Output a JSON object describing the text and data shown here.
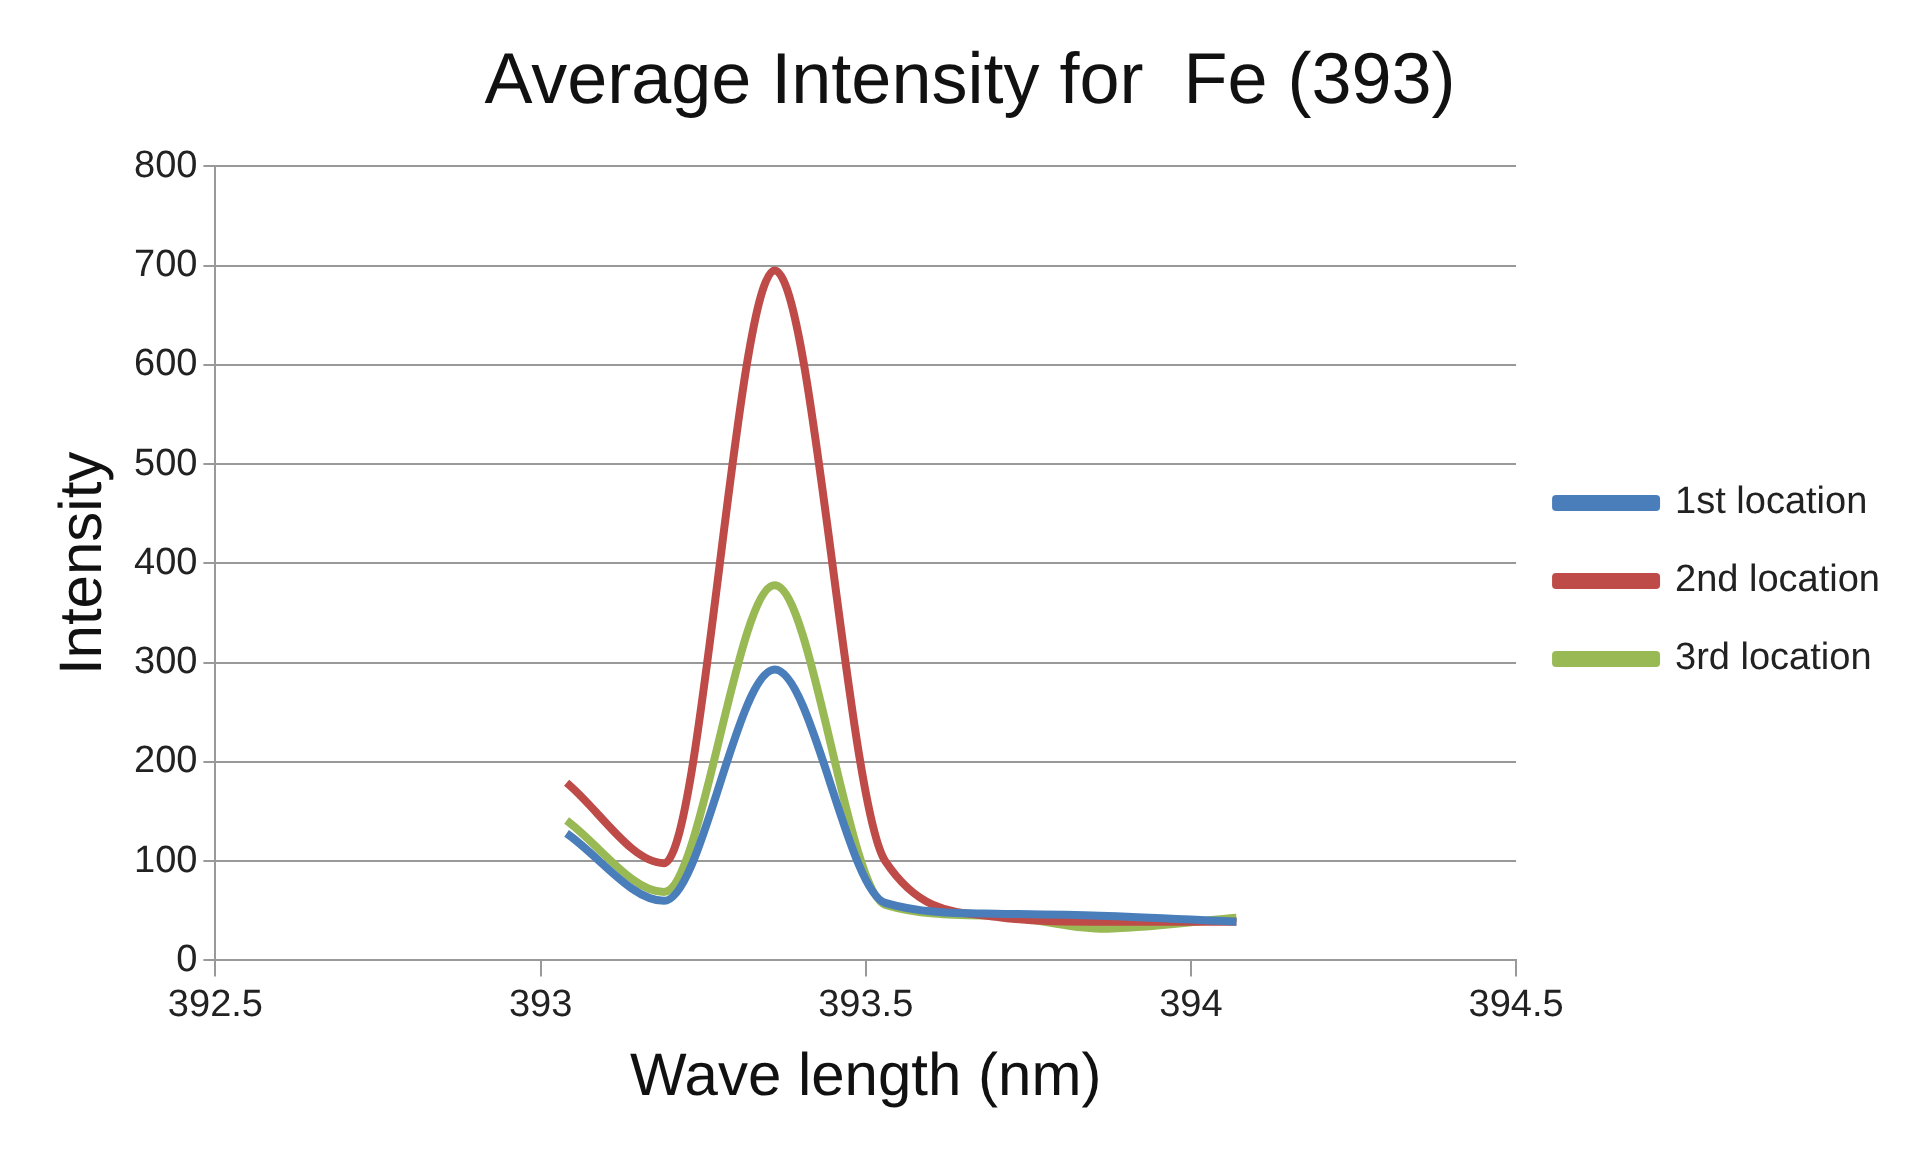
{
  "chart_data": {
    "type": "line",
    "title": "Average Intensity for  Fe (393)",
    "xlabel": "Wave length (nm)",
    "ylabel": "Intensity",
    "x": [
      393.04,
      393.19,
      393.36,
      393.53,
      393.7,
      393.86,
      394.07
    ],
    "series": [
      {
        "name": "1st location",
        "color": "#4a7ebb",
        "values": [
          128,
          60,
          293,
          58,
          47,
          45,
          39
        ]
      },
      {
        "name": "2nd location",
        "color": "#be4b48",
        "values": [
          179,
          98,
          695,
          100,
          44,
          39,
          39
        ]
      },
      {
        "name": "3rd location",
        "color": "#98b954",
        "values": [
          141,
          69,
          378,
          56,
          45,
          32,
          43
        ]
      }
    ],
    "xlim": [
      392.5,
      394.5
    ],
    "xticks": [
      392.5,
      393,
      393.5,
      394,
      394.5
    ],
    "ylim": [
      0,
      800
    ],
    "yticks": [
      0,
      100,
      200,
      300,
      400,
      500,
      600,
      700,
      800
    ],
    "grid": "y",
    "legend": "right",
    "marker": "none"
  }
}
